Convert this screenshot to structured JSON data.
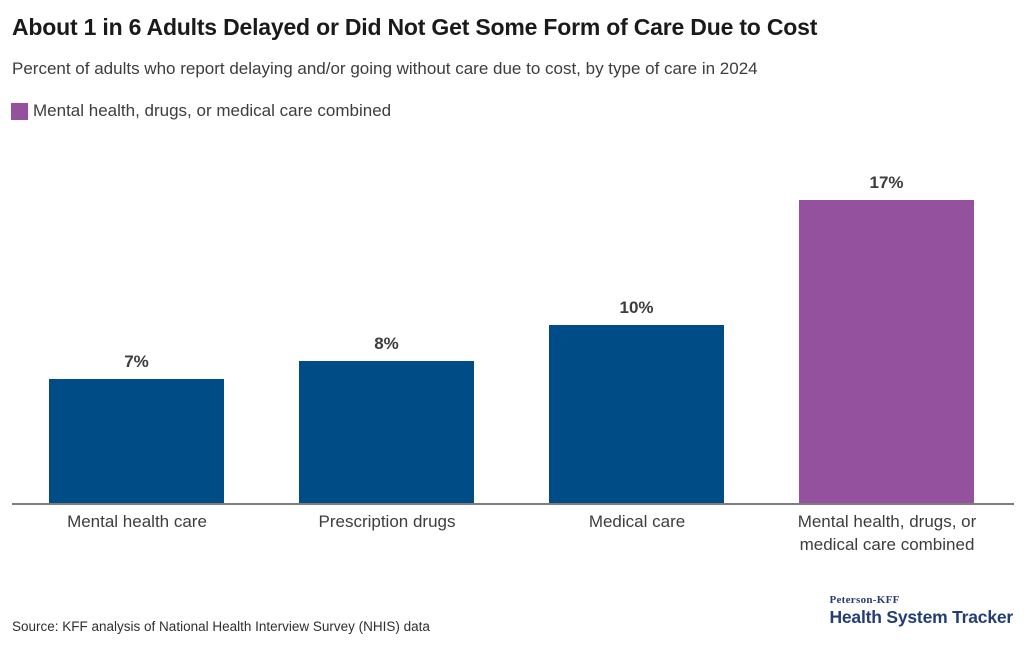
{
  "header": {
    "title": "About 1 in 6 Adults Delayed or Did Not Get Some Form of Care Due to Cost",
    "subtitle": "Percent of adults who report delaying and/or going without care due to cost, by type of care in 2024"
  },
  "legend": {
    "label": "Mental health, drugs, or medical care combined",
    "swatch_color": "#94529e"
  },
  "chart_data": {
    "type": "bar",
    "title": "About 1 in 6 Adults Delayed or Did Not Get Some Form of Care Due to Cost",
    "subtitle": "Percent of adults who report delaying and/or going without care due to cost, by type of care in 2024",
    "categories": [
      "Mental health care",
      "Prescription drugs",
      "Medical care",
      "Mental health, drugs, or medical care combined"
    ],
    "values": [
      7,
      8,
      10,
      17
    ],
    "value_labels": [
      "7%",
      "8%",
      "10%",
      "17%"
    ],
    "bar_colors": [
      "#004c87",
      "#004c87",
      "#004c87",
      "#94529e"
    ],
    "xlabel": "",
    "ylabel": "Percent of adults",
    "ylim": [
      0,
      18
    ],
    "grid": false,
    "legend_entries": [
      "Mental health, drugs, or medical care combined"
    ],
    "legend_position": "top-left",
    "data_labels_shown": true
  },
  "footer": {
    "source": "Source: KFF analysis of National Health Interview Survey (NHIS) data",
    "logo_top": "Peterson-KFF",
    "logo_bottom": "Health System Tracker",
    "logo_color": "#243e73"
  },
  "colors": {
    "bar_blue": "#004c87",
    "bar_purple": "#94529e",
    "axis_line": "#7d7d7d",
    "title_text": "#1a1a1a",
    "body_text": "#3d3d3d"
  }
}
